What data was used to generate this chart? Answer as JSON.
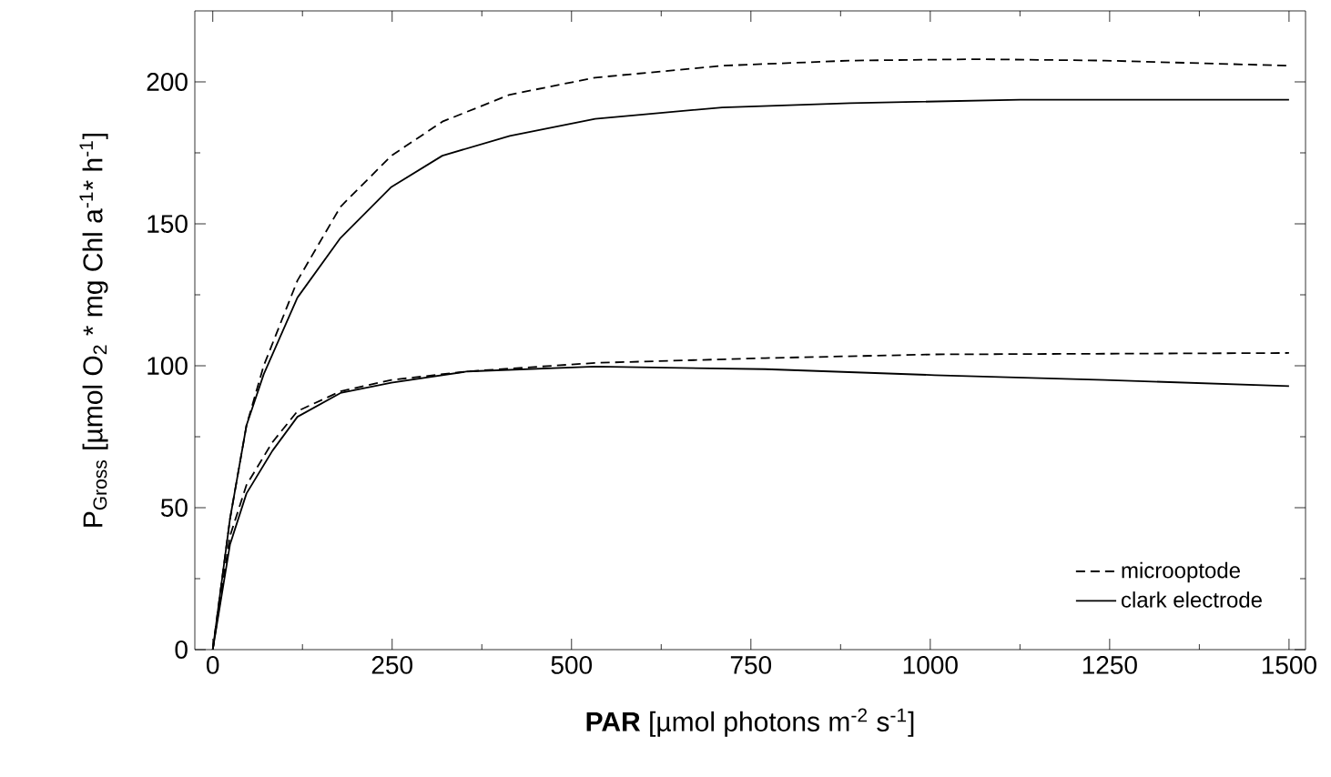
{
  "chart_data": {
    "type": "line",
    "xlabel": "**PAR** [µmol photons m$^{-2}$ s$^{-1}$]",
    "ylabel": "P$_{Gross}$ [µmol O$_{2}$ * mg Chl a$^{-1}$* h$^{-1}$]",
    "xlim": [
      -25,
      1523
    ],
    "ylim": [
      0,
      225
    ],
    "xticks": [
      0,
      250,
      500,
      750,
      1000,
      1250,
      1500
    ],
    "yticks": [
      0,
      50,
      100,
      150,
      200
    ],
    "legend": "bottom right",
    "grid": false,
    "series": [
      {
        "name": "microoptode",
        "color": "#000000",
        "line_style": "dashed",
        "x": [
          0,
          24,
          47,
          71,
          118,
          178,
          249,
          320,
          414,
          533,
          710,
          888,
          1065,
          1243,
          1500
        ],
        "values": [
          0,
          46,
          79,
          100,
          130,
          156,
          174,
          186,
          195.5,
          201.5,
          205.7,
          207.5,
          208,
          207.5,
          205.7
        ]
      },
      {
        "name": "clark electrode",
        "color": "#000000",
        "line_style": "solid",
        "x": [
          0,
          24,
          47,
          71,
          118,
          178,
          249,
          320,
          414,
          533,
          710,
          888,
          1125,
          1500
        ],
        "values": [
          0,
          46,
          79,
          97,
          124,
          145,
          163,
          174,
          181,
          187,
          191,
          192.5,
          193.7,
          193.7
        ]
      },
      {
        "color": "#000000",
        "line_style": "dashed",
        "x": [
          0,
          24,
          47,
          83,
          118,
          178,
          249,
          355,
          533,
          770,
          1006,
          1500
        ],
        "values": [
          0,
          40,
          58,
          73,
          84,
          91,
          95,
          98,
          101,
          102.7,
          104,
          104.5
        ]
      },
      {
        "color": "#000000",
        "line_style": "solid",
        "x": [
          0,
          24,
          47,
          83,
          118,
          178,
          249,
          355,
          533,
          770,
          1006,
          1243,
          1500
        ],
        "values": [
          0,
          37,
          55,
          70,
          82,
          90.4,
          94,
          98,
          99.7,
          98.8,
          96.7,
          95,
          92.8
        ]
      }
    ]
  }
}
